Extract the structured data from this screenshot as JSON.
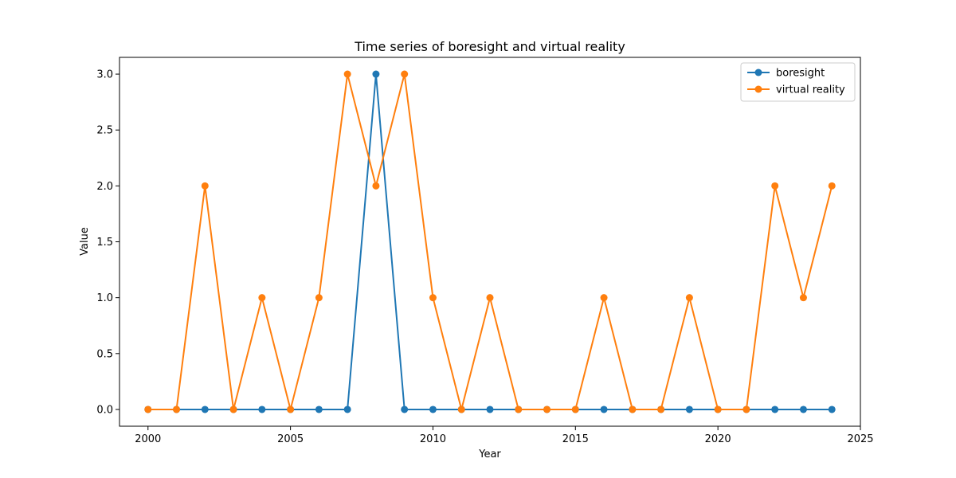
{
  "chart_data": {
    "type": "line",
    "title": "Time series of boresight and virtual reality",
    "xlabel": "Year",
    "ylabel": "Value",
    "xlim": [
      1999,
      2025
    ],
    "ylim": [
      -0.15,
      3.15
    ],
    "xticks": [
      2000,
      2005,
      2010,
      2015,
      2020,
      2025
    ],
    "yticks": [
      0.0,
      0.5,
      1.0,
      1.5,
      2.0,
      2.5,
      3.0
    ],
    "ytick_labels": [
      "0.0",
      "0.5",
      "1.0",
      "1.5",
      "2.0",
      "2.5",
      "3.0"
    ],
    "grid": false,
    "legend_position": "top-right",
    "x": [
      2000,
      2001,
      2002,
      2003,
      2004,
      2005,
      2006,
      2007,
      2008,
      2009,
      2010,
      2011,
      2012,
      2013,
      2014,
      2015,
      2016,
      2017,
      2018,
      2019,
      2020,
      2021,
      2022,
      2023,
      2024
    ],
    "series": [
      {
        "name": "boresight",
        "color": "#1f77b4",
        "values": [
          0,
          0,
          0,
          0,
          0,
          0,
          0,
          0,
          3,
          0,
          0,
          0,
          0,
          0,
          0,
          0,
          0,
          0,
          0,
          0,
          0,
          0,
          0,
          0,
          0
        ]
      },
      {
        "name": "virtual reality",
        "color": "#ff7f0e",
        "values": [
          0,
          0,
          2,
          0,
          1,
          0,
          1,
          3,
          2,
          3,
          1,
          0,
          1,
          0,
          0,
          0,
          1,
          0,
          0,
          1,
          0,
          0,
          2,
          1,
          2
        ]
      }
    ]
  }
}
